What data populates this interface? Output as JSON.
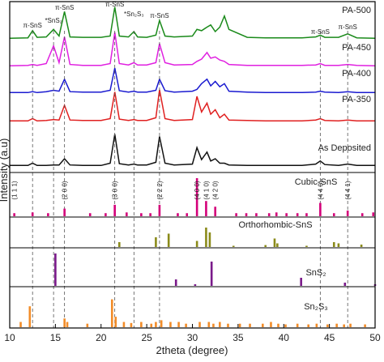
{
  "chart_data": {
    "type": "line",
    "x_label": "2theta (degree)",
    "y_label": "Intensity (a.u)",
    "xlim": [
      10,
      50
    ],
    "xticks": [
      10,
      15,
      20,
      25,
      30,
      35,
      40,
      45,
      50
    ],
    "x": [
      10,
      12,
      12.5,
      13,
      14,
      14.8,
      15.4,
      16,
      16.6,
      18,
      20,
      21,
      21.5,
      22,
      23,
      23.6,
      24,
      25,
      26,
      26.4,
      27,
      28,
      30,
      30.5,
      31,
      31.6,
      32,
      32.5,
      33,
      33.5,
      34,
      36,
      38,
      40,
      42,
      43.5,
      44,
      44.5,
      46,
      47,
      48,
      50
    ],
    "series": [
      {
        "name": "PA-500",
        "color": "#1a8a1a",
        "values": [
          5,
          6,
          22,
          7,
          8,
          25,
          10,
          65,
          8,
          7,
          7,
          10,
          75,
          10,
          8,
          20,
          8,
          7,
          12,
          45,
          10,
          8,
          10,
          25,
          22,
          30,
          35,
          20,
          30,
          55,
          25,
          7,
          6,
          6,
          6,
          8,
          12,
          7,
          7,
          15,
          6,
          5
        ]
      },
      {
        "name": "PA-450",
        "color": "#e020e0",
        "values": [
          5,
          6,
          8,
          6,
          10,
          50,
          12,
          70,
          8,
          6,
          6,
          10,
          80,
          10,
          7,
          12,
          7,
          7,
          12,
          55,
          12,
          7,
          8,
          15,
          20,
          35,
          22,
          25,
          18,
          15,
          8,
          6,
          6,
          6,
          6,
          7,
          10,
          6,
          6,
          8,
          6,
          5
        ]
      },
      {
        "name": "PA-400",
        "color": "#1a1ad0",
        "values": [
          5,
          5,
          7,
          5,
          7,
          10,
          8,
          35,
          7,
          6,
          6,
          10,
          60,
          9,
          6,
          8,
          6,
          6,
          10,
          35,
          9,
          6,
          8,
          12,
          25,
          35,
          20,
          30,
          18,
          25,
          8,
          6,
          5,
          5,
          5,
          6,
          8,
          6,
          5,
          7,
          5,
          5
        ]
      },
      {
        "name": "PA-350",
        "color": "#e02020",
        "values": [
          5,
          5,
          10,
          5,
          6,
          8,
          7,
          40,
          7,
          6,
          6,
          10,
          70,
          9,
          6,
          8,
          6,
          6,
          12,
          75,
          10,
          6,
          8,
          60,
          25,
          45,
          20,
          30,
          12,
          20,
          7,
          6,
          5,
          5,
          5,
          7,
          10,
          6,
          5,
          7,
          5,
          5
        ]
      },
      {
        "name": "As Deposited",
        "color": "#111111",
        "values": [
          5,
          5,
          10,
          5,
          5,
          6,
          6,
          20,
          6,
          5,
          5,
          10,
          75,
          9,
          6,
          8,
          6,
          6,
          12,
          70,
          10,
          6,
          8,
          45,
          18,
          35,
          15,
          20,
          10,
          10,
          6,
          5,
          5,
          5,
          5,
          8,
          15,
          7,
          5,
          8,
          5,
          5
        ]
      }
    ],
    "annotations": [
      {
        "text": "π-SnS",
        "x": 12.5
      },
      {
        "text": "*SnS₂",
        "x": 14.8
      },
      {
        "text": "π-SnS",
        "x": 16
      },
      {
        "text": "π-SnS",
        "x": 21.5
      },
      {
        "text": "*Sn₂S₃",
        "x": 23.6
      },
      {
        "text": "π-SnS",
        "x": 26.4
      },
      {
        "text": "π-SnS",
        "x": 44
      },
      {
        "text": "π-SnS",
        "x": 47
      }
    ],
    "reference_lines": [
      12.5,
      14.8,
      16,
      21.5,
      23.6,
      26.4,
      44,
      47
    ],
    "reference_patterns": [
      {
        "name": "Cubic-SnS",
        "color": "#d4007a",
        "positions": [
          10.5,
          12.5,
          14.2,
          16,
          18.8,
          20.5,
          21.5,
          22.8,
          24.4,
          25.4,
          26.4,
          28.4,
          29.4,
          30.5,
          31.5,
          32.5,
          34.8,
          35.9,
          37,
          38.4,
          39.2,
          40.3,
          41.5,
          42.5,
          44,
          45.5,
          47,
          48.6,
          49.8
        ],
        "values": [
          8,
          10,
          8,
          20,
          8,
          8,
          30,
          10,
          8,
          8,
          30,
          8,
          8,
          100,
          40,
          25,
          8,
          8,
          8,
          8,
          10,
          8,
          8,
          8,
          35,
          8,
          15,
          8,
          10
        ],
        "labels": [
          "(1 1 1)",
          null,
          null,
          "(2 0 0)",
          null,
          null,
          "(3 0 0)",
          null,
          null,
          null,
          "(2 2 2)",
          null,
          null,
          "(4 0 0)",
          "(4 1 0)",
          "(4 2 0)",
          null,
          null,
          null,
          null,
          null,
          null,
          null,
          null,
          "(4 4 0)",
          null,
          "(4 4 1)",
          null,
          null
        ]
      },
      {
        "name": "Orthorhombic-SnS",
        "color": "#8b8b1a",
        "positions": [
          22.0,
          26.0,
          27.4,
          30.5,
          31.5,
          31.9,
          34.5,
          38.0,
          39.0,
          39.3,
          42.5,
          45.5,
          46.0,
          48.5
        ],
        "values": [
          20,
          40,
          55,
          25,
          80,
          60,
          5,
          8,
          35,
          15,
          5,
          20,
          15,
          10
        ]
      },
      {
        "name": "SnS₂",
        "color": "#7a1a8a",
        "positions": [
          15.0,
          28.2,
          30.3,
          32.1,
          41.9,
          46.7,
          50
        ],
        "values": [
          100,
          20,
          5,
          75,
          25,
          10,
          5
        ]
      },
      {
        "name": "Sn₂S₃",
        "color": "#f28c28",
        "positions": [
          11.2,
          12.2,
          16.0,
          16.3,
          18.5,
          21.2,
          21.6,
          22.5,
          23.3,
          24.4,
          25.5,
          26.0,
          26.6,
          27.6,
          28.5,
          29.3,
          30.8,
          31.8,
          32.3,
          33.0,
          33.9,
          35.2,
          36.3,
          37.7,
          38.6,
          39.4,
          40.2,
          41.5,
          42.7,
          43.6,
          44.8,
          45.8,
          46.6,
          47.3,
          48.9
        ],
        "values": [
          15,
          60,
          25,
          15,
          10,
          80,
          30,
          15,
          12,
          15,
          10,
          15,
          20,
          15,
          15,
          10,
          15,
          15,
          10,
          15,
          10,
          10,
          10,
          10,
          15,
          10,
          8,
          10,
          8,
          10,
          8,
          10,
          8,
          10,
          8
        ]
      }
    ]
  }
}
